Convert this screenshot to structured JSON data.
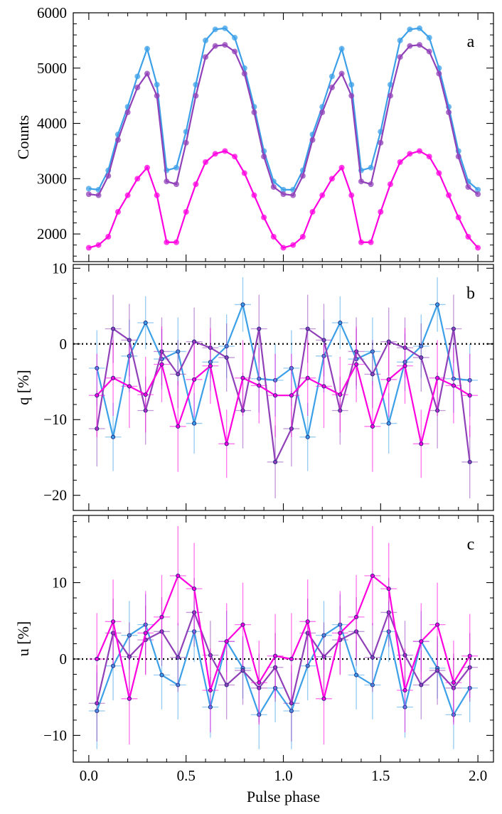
{
  "chart_data": [
    {
      "type": "line",
      "panel_label": "a",
      "ylabel": "Counts",
      "xlabel": "",
      "xlim": [
        -0.08,
        2.08
      ],
      "ylim": [
        1500,
        6000
      ],
      "yticks": [
        2000,
        3000,
        4000,
        5000,
        6000
      ],
      "ytick_labels": [
        "2000",
        "3000",
        "4000",
        "5000",
        "6000"
      ],
      "x": [
        0.0,
        0.05,
        0.1,
        0.15,
        0.2,
        0.25,
        0.3,
        0.35,
        0.4,
        0.45,
        0.5,
        0.55,
        0.6,
        0.65,
        0.7,
        0.75,
        0.8,
        0.85,
        0.9,
        0.95,
        1.0,
        1.05,
        1.1,
        1.15,
        1.2,
        1.25,
        1.3,
        1.35,
        1.4,
        1.45,
        1.5,
        1.55,
        1.6,
        1.65,
        1.7,
        1.75,
        1.8,
        1.85,
        1.9,
        1.95,
        2.0
      ],
      "series": [
        {
          "color": "#3ca0e8",
          "values": [
            2820,
            2800,
            3150,
            3800,
            4300,
            4850,
            5350,
            4700,
            3150,
            3200,
            3850,
            4700,
            5500,
            5700,
            5720,
            5550,
            5000,
            4300,
            3500,
            2950,
            2800,
            2800,
            3150,
            3800,
            4300,
            4850,
            5350,
            4700,
            3150,
            3200,
            3850,
            4700,
            5500,
            5700,
            5720,
            5550,
            5000,
            4300,
            3500,
            2950,
            2800
          ]
        },
        {
          "color": "#9040b8",
          "values": [
            2720,
            2700,
            3050,
            3700,
            4200,
            4650,
            4900,
            4500,
            2950,
            2900,
            3650,
            4500,
            5200,
            5400,
            5420,
            5300,
            4900,
            4200,
            3400,
            2850,
            2720,
            2700,
            3050,
            3700,
            4200,
            4650,
            4900,
            4500,
            2950,
            2900,
            3650,
            4500,
            5200,
            5400,
            5420,
            5300,
            4900,
            4200,
            3400,
            2850,
            2720
          ]
        },
        {
          "color": "#ff00e0",
          "values": [
            1750,
            1800,
            1950,
            2400,
            2700,
            3000,
            3200,
            2700,
            1850,
            1850,
            2400,
            2900,
            3300,
            3450,
            3500,
            3400,
            3100,
            2700,
            2300,
            1950,
            1750,
            1800,
            1950,
            2400,
            2700,
            3000,
            3200,
            2700,
            1850,
            1850,
            2400,
            2900,
            3300,
            3450,
            3500,
            3400,
            3100,
            2700,
            2300,
            1950,
            1750
          ]
        }
      ]
    },
    {
      "type": "line",
      "panel_label": "b",
      "ylabel": "q [%]",
      "xlabel": "",
      "xlim": [
        -0.08,
        2.08
      ],
      "ylim": [
        -22,
        10.5
      ],
      "yticks": [
        -20,
        -10,
        0,
        10
      ],
      "ytick_labels": [
        "−20",
        "−10",
        "0",
        "10"
      ],
      "reference_line": 0,
      "x": [
        0.0417,
        0.125,
        0.2083,
        0.2917,
        0.375,
        0.4583,
        0.5417,
        0.625,
        0.7083,
        0.7917,
        0.875,
        0.9583,
        1.0417,
        1.125,
        1.2083,
        1.2917,
        1.375,
        1.4583,
        1.5417,
        1.625,
        1.7083,
        1.7917,
        1.875,
        1.9583
      ],
      "series": [
        {
          "color": "#3ca0e8",
          "values": [
            -3.2,
            -12.3,
            -1.6,
            2.8,
            -2.0,
            -1.0,
            -10.5,
            -2.4,
            -0.3,
            5.2,
            -4.6,
            -4.8,
            -3.2,
            -12.3,
            -1.6,
            2.8,
            -2.0,
            -1.0,
            -10.5,
            -2.4,
            -0.3,
            5.2,
            -4.6,
            -4.8
          ],
          "errors": [
            5.0,
            4.5,
            4.8,
            3.5,
            4.0,
            4.5,
            4.0,
            3.8,
            4.2,
            3.6,
            4.5,
            4.8,
            5.0,
            4.5,
            4.8,
            3.5,
            4.0,
            4.5,
            4.0,
            3.8,
            4.2,
            3.6,
            4.5,
            4.8
          ]
        },
        {
          "color": "#9040b8",
          "values": [
            -11.2,
            2.0,
            0.5,
            -8.8,
            -1.0,
            -4.0,
            0.3,
            -0.5,
            -1.8,
            -8.8,
            2.0,
            -15.6,
            -11.2,
            2.0,
            0.5,
            -8.8,
            -1.0,
            -4.0,
            0.3,
            -0.5,
            -1.8,
            -8.8,
            2.0,
            -15.6
          ],
          "errors": [
            5.0,
            4.5,
            4.8,
            4.5,
            4.5,
            4.5,
            4.5,
            4.0,
            4.5,
            5.0,
            4.5,
            4.8,
            5.0,
            4.5,
            4.8,
            4.5,
            4.5,
            4.5,
            4.5,
            4.0,
            4.5,
            5.0,
            4.5,
            4.8
          ]
        },
        {
          "color": "#ff00e0",
          "values": [
            -6.8,
            -4.5,
            -5.6,
            -6.7,
            -2.7,
            -10.9,
            -4.7,
            -2.9,
            -13.2,
            -4.5,
            -5.5,
            -6.8,
            -6.8,
            -4.5,
            -5.6,
            -6.7,
            -2.7,
            -10.9,
            -4.7,
            -2.9,
            -13.2,
            -4.5,
            -5.5,
            -6.8
          ],
          "errors": [
            5.5,
            5.0,
            5.5,
            5.0,
            5.0,
            6.0,
            5.0,
            5.0,
            4.5,
            5.0,
            5.0,
            5.5,
            5.5,
            5.0,
            5.5,
            5.0,
            5.0,
            6.0,
            5.0,
            5.0,
            4.5,
            5.0,
            5.0,
            5.5
          ]
        }
      ]
    },
    {
      "type": "line",
      "panel_label": "c",
      "ylabel": "u [%]",
      "xlabel": "Pulse phase",
      "xlim": [
        -0.08,
        2.08
      ],
      "xticks": [
        0.0,
        0.5,
        1.0,
        1.5,
        2.0
      ],
      "xtick_labels": [
        "0.0",
        "0.5",
        "1.0",
        "1.5",
        "2.0"
      ],
      "ylim": [
        -13.5,
        18.8
      ],
      "yticks": [
        -10,
        0,
        10
      ],
      "ytick_labels": [
        "−10",
        "0",
        "10"
      ],
      "reference_line": 0,
      "x": [
        0.0417,
        0.125,
        0.2083,
        0.2917,
        0.375,
        0.4583,
        0.5417,
        0.625,
        0.7083,
        0.7917,
        0.875,
        0.9583,
        1.0417,
        1.125,
        1.2083,
        1.2917,
        1.375,
        1.4583,
        1.5417,
        1.625,
        1.7083,
        1.7917,
        1.875,
        1.9583
      ],
      "series": [
        {
          "color": "#3ca0e8",
          "values": [
            -6.8,
            -0.9,
            3.1,
            4.5,
            -2.1,
            -3.4,
            3.6,
            -6.3,
            2.3,
            -1.2,
            -7.3,
            -3.8,
            -6.8,
            -0.9,
            3.1,
            4.5,
            -2.1,
            -3.4,
            3.6,
            -6.3,
            2.3,
            -1.2,
            -7.3,
            -3.8
          ],
          "errors": [
            5.0,
            4.5,
            4.5,
            4.0,
            4.5,
            4.5,
            4.0,
            4.0,
            4.0,
            4.0,
            4.5,
            4.5,
            5.0,
            4.5,
            4.5,
            4.0,
            4.5,
            4.5,
            4.0,
            4.0,
            4.0,
            4.0,
            4.5,
            4.5
          ]
        },
        {
          "color": "#9040b8",
          "values": [
            -5.8,
            3.4,
            0.3,
            2.5,
            3.6,
            0.2,
            6.1,
            0.5,
            -3.4,
            -1.5,
            -3.8,
            -1.1,
            -5.8,
            3.4,
            0.3,
            2.5,
            3.6,
            0.2,
            6.1,
            0.5,
            -3.4,
            -1.5,
            -3.8,
            -1.1
          ],
          "errors": [
            5.0,
            4.5,
            4.5,
            4.5,
            4.5,
            4.5,
            4.5,
            4.5,
            4.5,
            4.5,
            4.5,
            4.5,
            5.0,
            4.5,
            4.5,
            4.5,
            4.5,
            4.5,
            4.5,
            4.5,
            4.5,
            4.5,
            4.5,
            4.5
          ]
        },
        {
          "color": "#ff00e0",
          "values": [
            0.0,
            4.9,
            -5.2,
            3.4,
            5.5,
            10.9,
            9.2,
            -4.1,
            2.3,
            4.5,
            -3.1,
            0.4,
            0.0,
            4.9,
            -5.2,
            3.4,
            5.5,
            10.9,
            9.2,
            -4.1,
            2.3,
            4.5,
            -3.1,
            0.4
          ],
          "errors": [
            6.0,
            5.5,
            6.0,
            5.5,
            5.5,
            6.5,
            6.0,
            5.5,
            5.0,
            5.5,
            5.5,
            5.5,
            6.0,
            5.5,
            6.0,
            5.5,
            5.5,
            6.5,
            6.0,
            5.5,
            5.0,
            5.5,
            5.5,
            5.5
          ]
        }
      ]
    }
  ]
}
